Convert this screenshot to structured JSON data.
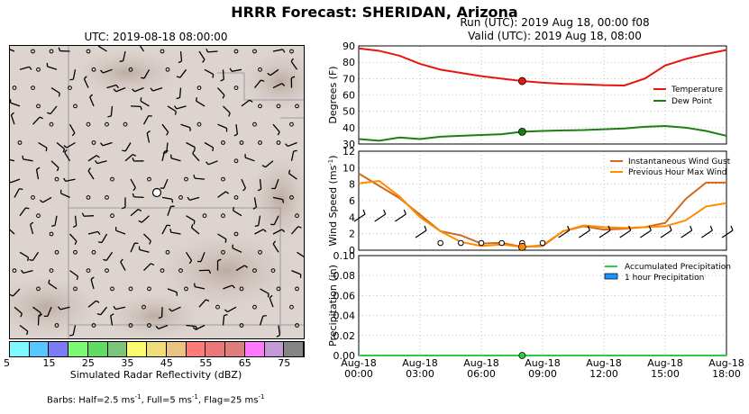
{
  "page": {
    "title": "HRRR Forecast: SHERIDAN, Arizona",
    "map_title": "UTC: 2019-08-18 08:00:00",
    "run_line": "Run (UTC): 2019 Aug 18, 00:00 f08",
    "valid_line": "Valid (UTC): 2019 Aug 18, 08:00",
    "colorbar_label": "Simulated Radar Reflectivity (dBZ)",
    "colorbar_ticks": [
      "5",
      "15",
      "25",
      "35",
      "45",
      "55",
      "65",
      "75"
    ],
    "colorbar_colors": [
      "#7df9ff",
      "#57c8ff",
      "#7b7bf5",
      "#7dfa73",
      "#63db63",
      "#7cc47c",
      "#fbfb6e",
      "#f0dc78",
      "#e9c381",
      "#ff7b7b",
      "#ea7878",
      "#df7c7c",
      "#fb7bfb",
      "#c29ad6",
      "#858585"
    ],
    "barb_note": "Barbs: Half=2.5 ms",
    "barb_note_2": ", Full=5 ms",
    "barb_note_3": ", Flag=25 ms",
    "barb_sup": "-1"
  },
  "chart_data": [
    {
      "type": "line",
      "ylabel": "Degrees (F)",
      "ylim": [
        30,
        90
      ],
      "yticks": [
        "30",
        "40",
        "50",
        "60",
        "70",
        "80",
        "90"
      ],
      "grid": true,
      "legend_position": "right",
      "x_hours": [
        0,
        1,
        2,
        3,
        4,
        5,
        6,
        7,
        8,
        9,
        10,
        11,
        12,
        13,
        14,
        15,
        16,
        17,
        18
      ],
      "series": [
        {
          "name": "Temperature",
          "color": "#e8150e",
          "values": [
            88.5,
            87,
            84,
            79,
            75.5,
            73.5,
            71.5,
            70,
            68.5,
            67.5,
            66.8,
            66.5,
            66,
            65.8,
            70,
            78,
            82,
            85,
            87.5
          ]
        },
        {
          "name": "Dew Point",
          "color": "#1b7f12",
          "values": [
            33,
            32,
            34,
            33,
            34.5,
            35,
            35.5,
            36,
            37.5,
            38,
            38.3,
            38.5,
            39,
            39.5,
            40.5,
            41,
            40,
            38,
            35
          ]
        }
      ],
      "marker_hour": 8,
      "marker_values": [
        68.5,
        37.5
      ]
    },
    {
      "type": "line",
      "ylabel": "Wind Speed (ms",
      "ylabel_sup": "-1",
      "ylabel_tail": ")",
      "ylim": [
        0,
        12
      ],
      "yticks": [
        "0",
        "2",
        "4",
        "6",
        "8",
        "10",
        "12"
      ],
      "grid": true,
      "legend_position": "top-right",
      "x_hours": [
        0,
        1,
        2,
        3,
        4,
        5,
        6,
        7,
        8,
        9,
        10,
        11,
        12,
        13,
        14,
        15,
        16,
        17,
        18
      ],
      "series": [
        {
          "name": "Instantaneous Wind Gust",
          "color": "#d2691e",
          "values": [
            9.3,
            7.8,
            6.3,
            4.3,
            2.3,
            1.8,
            0.8,
            0.9,
            0.4,
            0.5,
            2.3,
            2.9,
            2.5,
            2.6,
            2.8,
            3.3,
            6.2,
            8.2,
            8.2
          ]
        },
        {
          "name": "Previous Hour Max Wind",
          "color": "#ff8c00",
          "values": [
            8.1,
            8.4,
            6.5,
            4.0,
            2.3,
            1.0,
            0.5,
            0.7,
            0.4,
            0.6,
            2.3,
            3.0,
            2.8,
            2.7,
            2.8,
            2.9,
            3.6,
            5.3,
            5.7
          ]
        }
      ],
      "marker_hour": 8,
      "marker_value": 0.4
    },
    {
      "type": "bar",
      "ylabel": "Precipitation (in)",
      "ylim": [
        0,
        0.1
      ],
      "yticks": [
        "0.00",
        "0.02",
        "0.04",
        "0.06",
        "0.08",
        "0.10"
      ],
      "grid": true,
      "legend_position": "top-right",
      "x_hours": [
        0,
        1,
        2,
        3,
        4,
        5,
        6,
        7,
        8,
        9,
        10,
        11,
        12,
        13,
        14,
        15,
        16,
        17,
        18
      ],
      "series": [
        {
          "name": "Accumulated Precipitation",
          "color": "#2ecc40",
          "values": [
            0,
            0,
            0,
            0,
            0,
            0,
            0,
            0,
            0,
            0,
            0,
            0,
            0,
            0,
            0,
            0,
            0,
            0,
            0
          ]
        },
        {
          "name": "1 hour Precipitation",
          "color": "#1e90ff",
          "values": [
            0,
            0,
            0,
            0,
            0,
            0,
            0,
            0,
            0,
            0,
            0,
            0,
            0,
            0,
            0,
            0,
            0,
            0,
            0
          ]
        }
      ],
      "marker_hour": 8,
      "marker_value": 0,
      "x_tick_labels": [
        [
          "Aug-18",
          "00:00"
        ],
        [
          "Aug-18",
          "03:00"
        ],
        [
          "Aug-18",
          "06:00"
        ],
        [
          "Aug-18",
          "09:00"
        ],
        [
          "Aug-18",
          "12:00"
        ],
        [
          "Aug-18",
          "15:00"
        ],
        [
          "Aug-18",
          "18:00"
        ]
      ],
      "x_tick_hours": [
        0,
        3,
        6,
        9,
        12,
        15,
        18
      ]
    }
  ]
}
